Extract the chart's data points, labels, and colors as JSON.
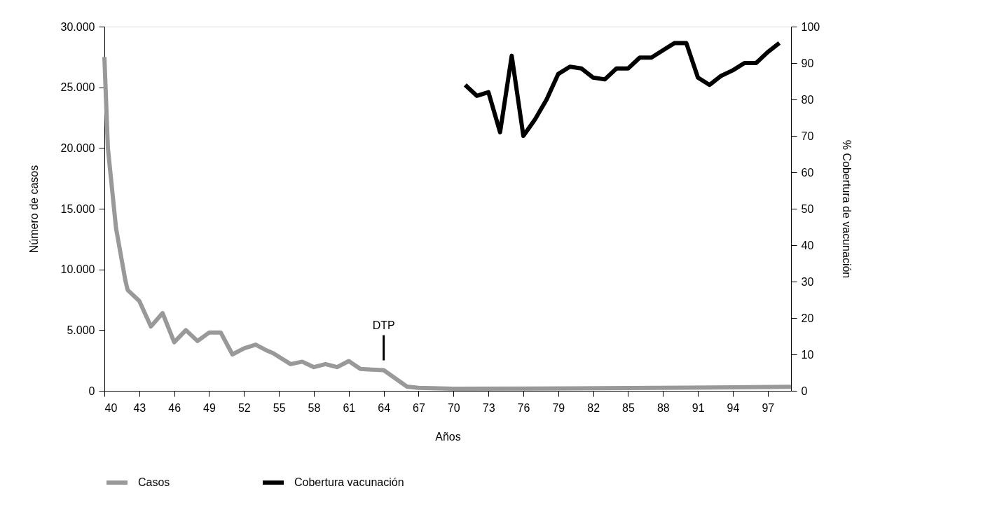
{
  "chart_data": {
    "type": "line",
    "xlabel": "Años",
    "ylabel": "Número de casos",
    "y2label": "% Cobertura de vacunación",
    "xlim": [
      40,
      99
    ],
    "xticks": [
      40,
      43,
      46,
      49,
      52,
      55,
      58,
      61,
      64,
      67,
      70,
      73,
      76,
      79,
      82,
      85,
      88,
      91,
      94,
      97
    ],
    "ylim": [
      0,
      30000
    ],
    "yticks": [
      0,
      {
        "value": 5000,
        "label": "5.000"
      },
      {
        "value": 10000,
        "label": "10.000"
      },
      {
        "value": 15000,
        "label": "15.000"
      },
      {
        "value": 20000,
        "label": "20.000"
      },
      {
        "value": 25000,
        "label": "25.000"
      },
      {
        "value": 30000,
        "label": "30.000"
      }
    ],
    "y2lim": [
      0,
      100
    ],
    "y2ticks": [
      0,
      10,
      20,
      30,
      40,
      50,
      60,
      70,
      80,
      90,
      100
    ],
    "series": [
      {
        "name": "Casos",
        "color": "#999999",
        "x": [
          40,
          40.3,
          41,
          41.8,
          42,
          43,
          44,
          45,
          46,
          47,
          48,
          49,
          50,
          51,
          52,
          53,
          54,
          54.5,
          56,
          57,
          58,
          59,
          60,
          61,
          62,
          63,
          64,
          66,
          67,
          70,
          80,
          90,
          99
        ],
        "values": [
          27500,
          20000,
          13400,
          9100,
          8300,
          7400,
          5300,
          6400,
          4000,
          5000,
          4100,
          4800,
          4800,
          3000,
          3500,
          3800,
          3300,
          3100,
          2200,
          2400,
          1950,
          2200,
          1950,
          2450,
          1800,
          1750,
          1700,
          350,
          250,
          180,
          200,
          260,
          330
        ]
      },
      {
        "name": "Cobertura vacunación",
        "color": "#000000",
        "axis": "y2",
        "x": [
          71,
          72,
          73,
          74,
          75,
          76,
          77,
          78,
          79,
          80,
          81,
          82,
          83,
          84,
          85,
          86,
          87,
          88,
          89,
          90,
          91,
          92,
          93,
          94,
          95,
          96,
          97,
          98
        ],
        "values": [
          84,
          81,
          82,
          71,
          92,
          70,
          74.5,
          80,
          87,
          89,
          88.5,
          86,
          85.5,
          88.5,
          88.5,
          91.5,
          91.5,
          93.5,
          95.5,
          95.5,
          86,
          84,
          86.5,
          88,
          90,
          90,
          93,
          95.5
        ]
      }
    ],
    "annotations": [
      {
        "text": "DTP",
        "x": 64
      }
    ],
    "legend": "bottom",
    "grid": false,
    "line_style": "solid",
    "marker": "none"
  }
}
